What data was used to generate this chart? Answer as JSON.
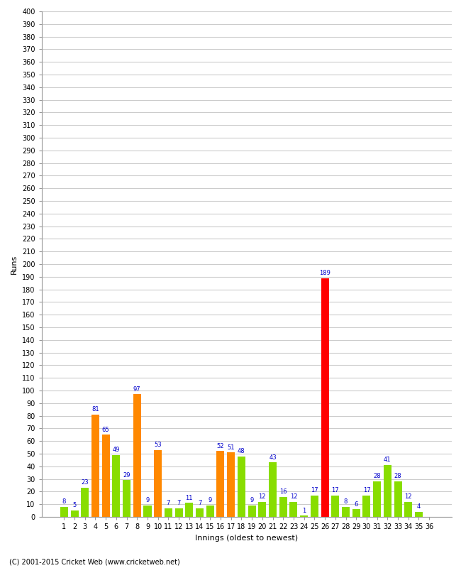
{
  "innings": [
    1,
    2,
    3,
    4,
    5,
    6,
    7,
    8,
    9,
    10,
    11,
    12,
    13,
    14,
    15,
    16,
    17,
    18,
    19,
    20,
    21,
    22,
    23,
    24,
    25,
    26,
    27,
    28,
    29,
    30,
    31,
    32,
    33,
    34,
    35,
    36
  ],
  "values": [
    8,
    5,
    23,
    81,
    65,
    49,
    29,
    97,
    9,
    53,
    7,
    7,
    11,
    7,
    9,
    52,
    51,
    48,
    9,
    12,
    43,
    16,
    12,
    1,
    17,
    189,
    17,
    8,
    6,
    17,
    28,
    41,
    28,
    12,
    4,
    0
  ],
  "colors": [
    "#88dd00",
    "#88dd00",
    "#88dd00",
    "#ff8800",
    "#ff8800",
    "#88dd00",
    "#88dd00",
    "#ff8800",
    "#88dd00",
    "#ff8800",
    "#88dd00",
    "#88dd00",
    "#88dd00",
    "#88dd00",
    "#88dd00",
    "#ff8800",
    "#ff8800",
    "#88dd00",
    "#88dd00",
    "#88dd00",
    "#88dd00",
    "#88dd00",
    "#88dd00",
    "#88dd00",
    "#88dd00",
    "#ff0000",
    "#88dd00",
    "#88dd00",
    "#88dd00",
    "#88dd00",
    "#88dd00",
    "#88dd00",
    "#88dd00",
    "#88dd00",
    "#88dd00",
    "#88dd00"
  ],
  "ylim": [
    0,
    400
  ],
  "ytick_step": 10,
  "ylabel": "Runs",
  "xlabel": "Innings (oldest to newest)",
  "footer": "(C) 2001-2015 Cricket Web (www.cricketweb.net)",
  "bg_color": "#ffffff",
  "grid_color": "#cccccc",
  "label_color": "#0000cc",
  "bar_width": 0.75
}
